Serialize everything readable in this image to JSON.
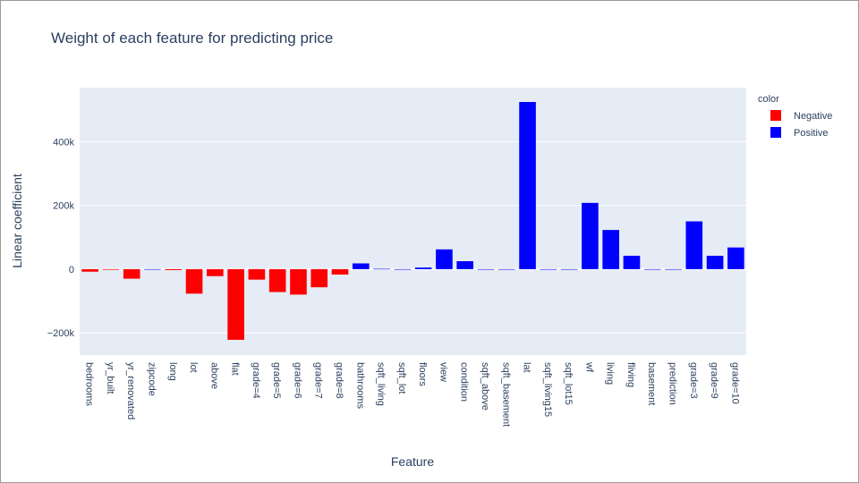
{
  "chart_data": {
    "type": "bar",
    "title": "Weight of each feature for predicting price",
    "xlabel": "Feature",
    "ylabel": "Linear coefficient",
    "ylim": [
      -270000,
      570000
    ],
    "yticks": [
      -200000,
      0,
      200000,
      400000
    ],
    "ytick_labels": [
      "−200k",
      "0",
      "200k",
      "400k"
    ],
    "grid": true,
    "legend_title": "color",
    "legend_position": "top-right",
    "colors": {
      "Negative": "#ff0000",
      "Positive": "#0000ff"
    },
    "categories": [
      "bedrooms",
      "yr_built",
      "yr_renovated",
      "zipcode",
      "long",
      "lot",
      "above",
      "flat",
      "grade=4",
      "grade=5",
      "grade=6",
      "grade=7",
      "grade=8",
      "bathrooms",
      "sqft_living",
      "sqft_lot",
      "floors",
      "view",
      "condition",
      "sqft_above",
      "sqft_basement",
      "lat",
      "sqft_living15",
      "sqft_lot15",
      "wf",
      "living",
      "fliving",
      "basement",
      "prediction",
      "grade=3",
      "grade=9",
      "grade=10"
    ],
    "series": [
      {
        "name": "Negative",
        "values": [
          -8000,
          -2000,
          -30000,
          null,
          -3000,
          -77000,
          -22000,
          -222000,
          -33000,
          -72000,
          -80000,
          -57000,
          -17000,
          null,
          null,
          null,
          null,
          null,
          null,
          null,
          null,
          null,
          null,
          null,
          null,
          null,
          null,
          null,
          null,
          null,
          null,
          null
        ]
      },
      {
        "name": "Positive",
        "values": [
          null,
          null,
          null,
          0,
          null,
          null,
          null,
          null,
          null,
          null,
          null,
          null,
          null,
          18000,
          1000,
          0,
          5000,
          62000,
          25000,
          0,
          0,
          525000,
          0,
          0,
          208000,
          123000,
          42000,
          0,
          0,
          150000,
          42000,
          68000
        ]
      }
    ]
  }
}
